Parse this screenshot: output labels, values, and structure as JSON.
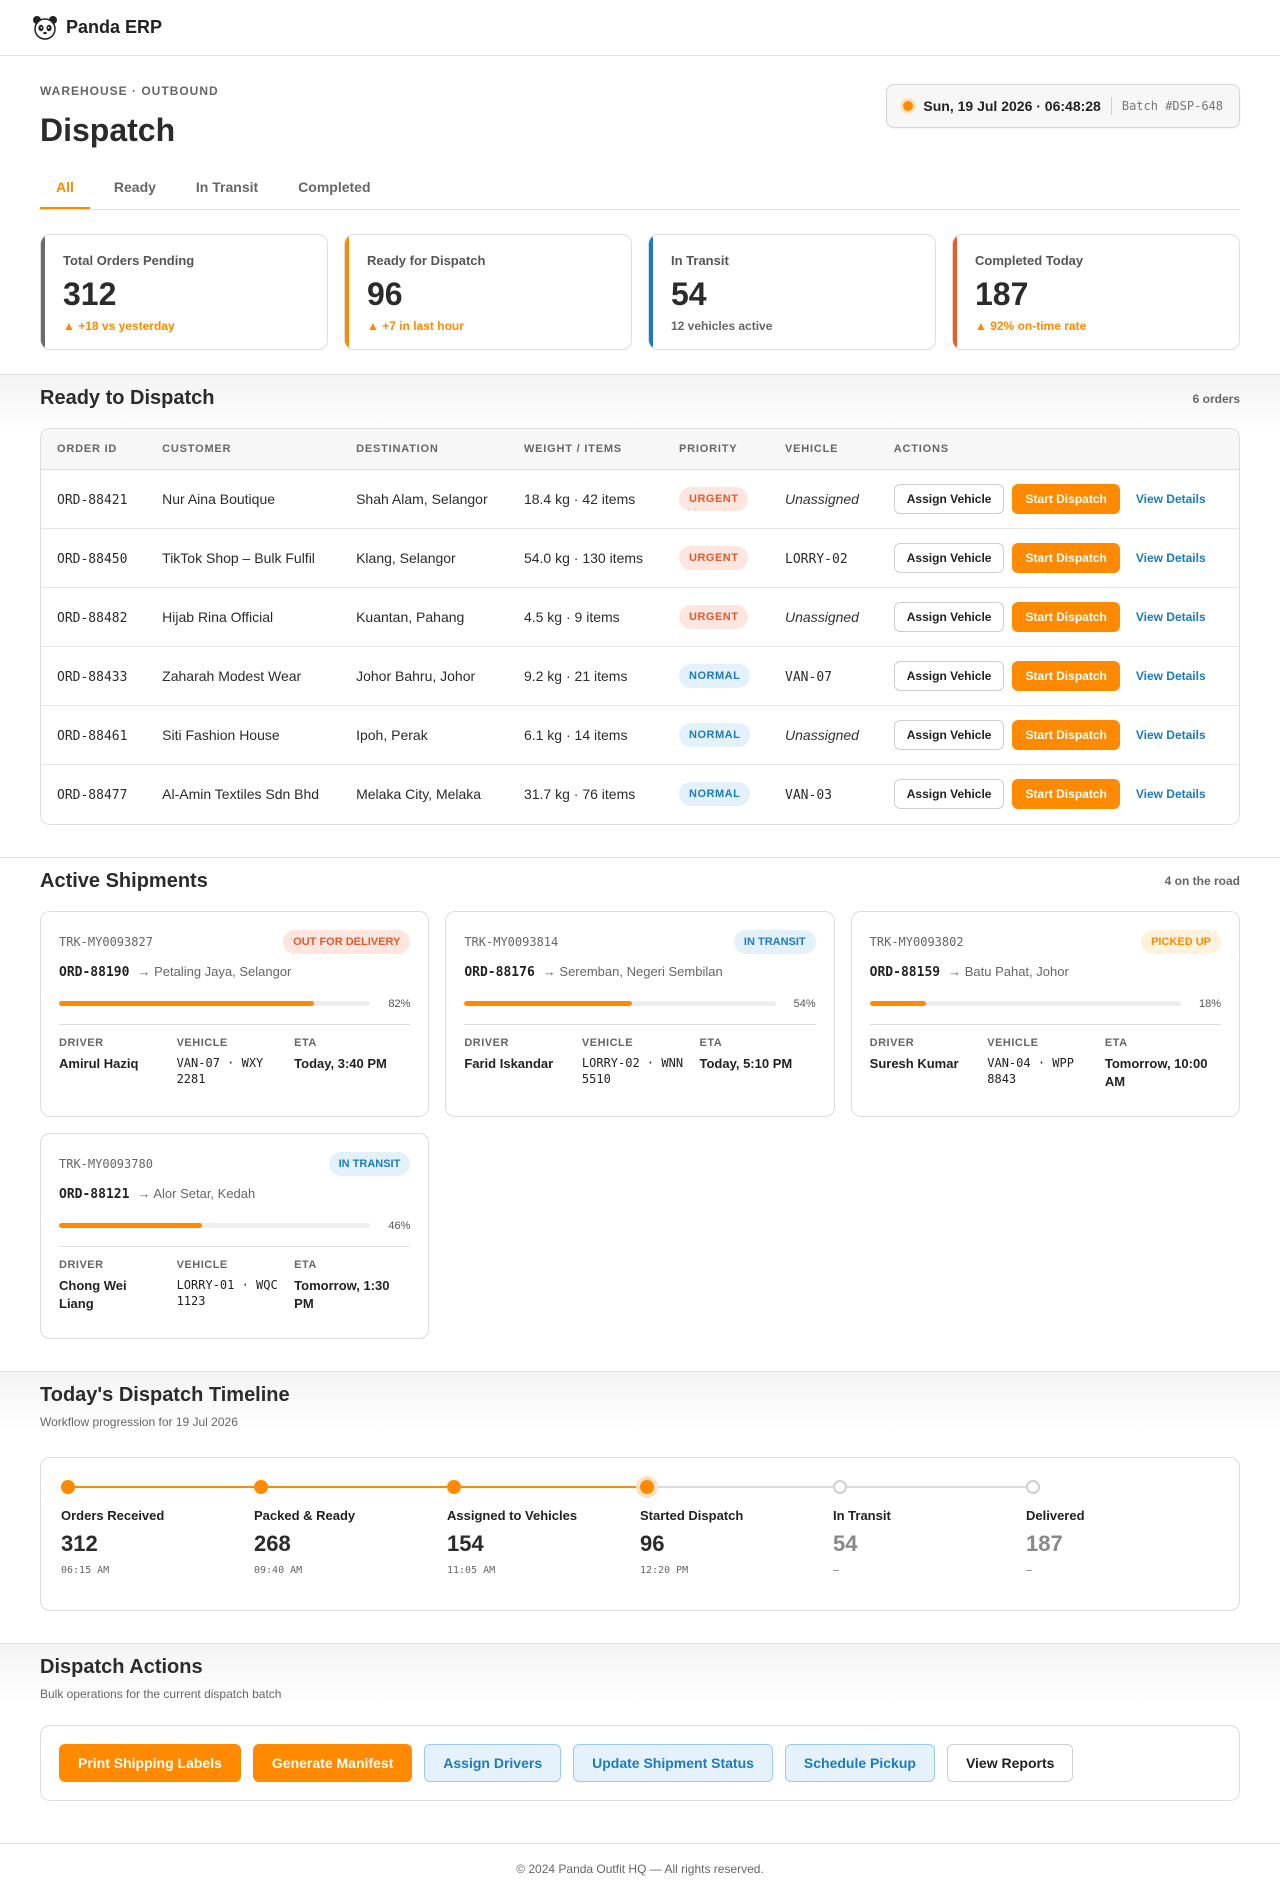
{
  "app": {
    "brand": "Panda ERP",
    "logo_icon": "panda-icon"
  },
  "header": {
    "eyebrow": "WAREHOUSE · OUTBOUND",
    "title": "Dispatch",
    "clock_time": "Sun, 19 Jul 2026 · 06:48:28",
    "batch": "Batch #DSP-648"
  },
  "tabs": [
    {
      "label": "All",
      "active": true
    },
    {
      "label": "Ready",
      "active": false
    },
    {
      "label": "In Transit",
      "active": false
    },
    {
      "label": "Completed",
      "active": false
    }
  ],
  "stats": [
    {
      "label": "Total Orders Pending",
      "value": "312",
      "note": "▲ +18 vs yesterday",
      "accent": "#6b6b6b",
      "note_color": "#ff8a00"
    },
    {
      "label": "Ready for Dispatch",
      "value": "96",
      "note": "▲ +7 in last hour",
      "accent": "#ff8a00",
      "note_color": "#ff8a00"
    },
    {
      "label": "In Transit",
      "value": "54",
      "note": "12 vehicles active",
      "accent": "#1a7bc2",
      "note_color": "#666666"
    },
    {
      "label": "Completed Today",
      "value": "187",
      "note": "▲ 92% on-time rate",
      "accent": "#f05a1e",
      "note_color": "#ff8a00"
    }
  ],
  "ready": {
    "title": "Ready to Dispatch",
    "meta": "6 orders",
    "columns": [
      "ORDER ID",
      "CUSTOMER",
      "DESTINATION",
      "WEIGHT / ITEMS",
      "PRIORITY",
      "VEHICLE",
      "ACTIONS"
    ],
    "assign_label": "Assign Vehicle",
    "start_label": "Start Dispatch",
    "details_label": "View Details",
    "rows": [
      {
        "id": "ORD-88421",
        "customer": "Nur Aina Boutique",
        "destination": "Shah Alam, Selangor",
        "weight": "18.4 kg · 42 items",
        "priority": "URGENT",
        "vehicle": "Unassigned"
      },
      {
        "id": "ORD-88450",
        "customer": "TikTok Shop – Bulk Fulfil",
        "destination": "Klang, Selangor",
        "weight": "54.0 kg · 130 items",
        "priority": "URGENT",
        "vehicle": "LORRY-02"
      },
      {
        "id": "ORD-88482",
        "customer": "Hijab Rina Official",
        "destination": "Kuantan, Pahang",
        "weight": "4.5 kg · 9 items",
        "priority": "URGENT",
        "vehicle": "Unassigned"
      },
      {
        "id": "ORD-88433",
        "customer": "Zaharah Modest Wear",
        "destination": "Johor Bahru, Johor",
        "weight": "9.2 kg · 21 items",
        "priority": "NORMAL",
        "vehicle": "VAN-07"
      },
      {
        "id": "ORD-88461",
        "customer": "Siti Fashion House",
        "destination": "Ipoh, Perak",
        "weight": "6.1 kg · 14 items",
        "priority": "NORMAL",
        "vehicle": "Unassigned"
      },
      {
        "id": "ORD-88477",
        "customer": "Al-Amin Textiles Sdn Bhd",
        "destination": "Melaka City, Melaka",
        "weight": "31.7 kg · 76 items",
        "priority": "NORMAL",
        "vehicle": "VAN-03"
      }
    ]
  },
  "shipments": {
    "title": "Active Shipments",
    "meta": "4 on the road",
    "labels": {
      "driver": "DRIVER",
      "vehicle": "VEHICLE",
      "eta": "ETA"
    },
    "items": [
      {
        "trk": "TRK-MY0093827",
        "status": "OUT FOR DELIVERY",
        "status_kind": "ofd",
        "order": "ORD-88190",
        "dest": "→ Petaling Jaya, Selangor",
        "progress": 82,
        "progress_label": "82%",
        "driver": "Amirul Haziq",
        "vehicle": "VAN-07 · WXY 2281",
        "eta": "Today, 3:40 PM"
      },
      {
        "trk": "TRK-MY0093814",
        "status": "IN TRANSIT",
        "status_kind": "transit",
        "order": "ORD-88176",
        "dest": "→ Seremban, Negeri Sembilan",
        "progress": 54,
        "progress_label": "54%",
        "driver": "Farid Iskandar",
        "vehicle": "LORRY-02 · WNN 5510",
        "eta": "Today, 5:10 PM"
      },
      {
        "trk": "TRK-MY0093802",
        "status": "PICKED UP",
        "status_kind": "picked",
        "order": "ORD-88159",
        "dest": "→ Batu Pahat, Johor",
        "progress": 18,
        "progress_label": "18%",
        "driver": "Suresh Kumar",
        "vehicle": "VAN-04 · WPP 8843",
        "eta": "Tomorrow, 10:00 AM"
      },
      {
        "trk": "TRK-MY0093780",
        "status": "IN TRANSIT",
        "status_kind": "transit",
        "order": "ORD-88121",
        "dest": "→ Alor Setar, Kedah",
        "progress": 46,
        "progress_label": "46%",
        "driver": "Chong Wei Liang",
        "vehicle": "LORRY-01 · WQC 1123",
        "eta": "Tomorrow, 1:30 PM"
      }
    ]
  },
  "timeline": {
    "title": "Today's Dispatch Timeline",
    "subtitle": "Workflow progression for 19 Jul 2026",
    "steps": [
      {
        "label": "Orders Received",
        "value": "312",
        "time": "06:15 AM",
        "state": "done"
      },
      {
        "label": "Packed & Ready",
        "value": "268",
        "time": "09:40 AM",
        "state": "done"
      },
      {
        "label": "Assigned to Vehicles",
        "value": "154",
        "time": "11:05 AM",
        "state": "done"
      },
      {
        "label": "Started Dispatch",
        "value": "96",
        "time": "12:20 PM",
        "state": "current"
      },
      {
        "label": "In Transit",
        "value": "54",
        "time": "—",
        "state": "pending"
      },
      {
        "label": "Delivered",
        "value": "187",
        "time": "—",
        "state": "pending"
      }
    ]
  },
  "bulk": {
    "title": "Dispatch Actions",
    "subtitle": "Bulk operations for the current dispatch batch",
    "buttons": [
      {
        "label": "Print Shipping Labels",
        "kind": "primary"
      },
      {
        "label": "Generate Manifest",
        "kind": "primary"
      },
      {
        "label": "Assign Drivers",
        "kind": "info"
      },
      {
        "label": "Update Shipment Status",
        "kind": "info"
      },
      {
        "label": "Schedule Pickup",
        "kind": "info"
      },
      {
        "label": "View Reports",
        "kind": "plain"
      }
    ]
  },
  "footer": {
    "text": "© 2024 Panda Outfit HQ — All rights reserved."
  }
}
